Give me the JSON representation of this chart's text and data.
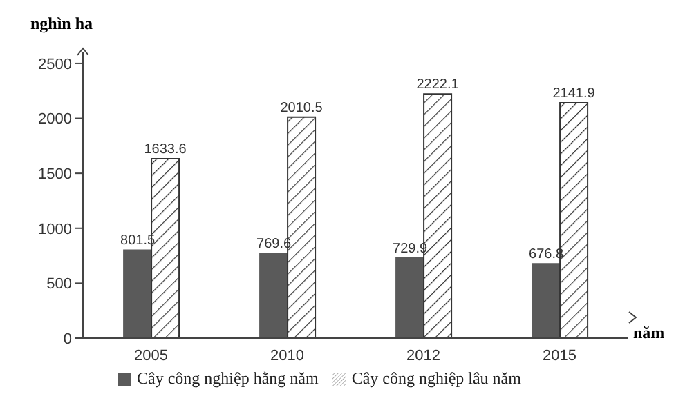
{
  "chart_data": {
    "type": "bar",
    "ylabel": "nghìn ha",
    "xlabel": "năm",
    "categories": [
      "2005",
      "2010",
      "2012",
      "2015"
    ],
    "series": [
      {
        "name": "Cây công nghiệp hằng năm",
        "color": "#5a5a5a",
        "values": [
          801.5,
          769.6,
          729.9,
          676.8
        ]
      },
      {
        "name": "Cây công nghiệp lâu năm",
        "color": "#333333",
        "values": [
          1633.6,
          2010.5,
          2222.1,
          2141.9
        ]
      }
    ],
    "ylim": [
      0,
      2600
    ],
    "yticks": [
      0,
      500,
      1000,
      1500,
      2000,
      2500
    ],
    "grid": false,
    "legend": "bottom",
    "data_labels": true
  }
}
